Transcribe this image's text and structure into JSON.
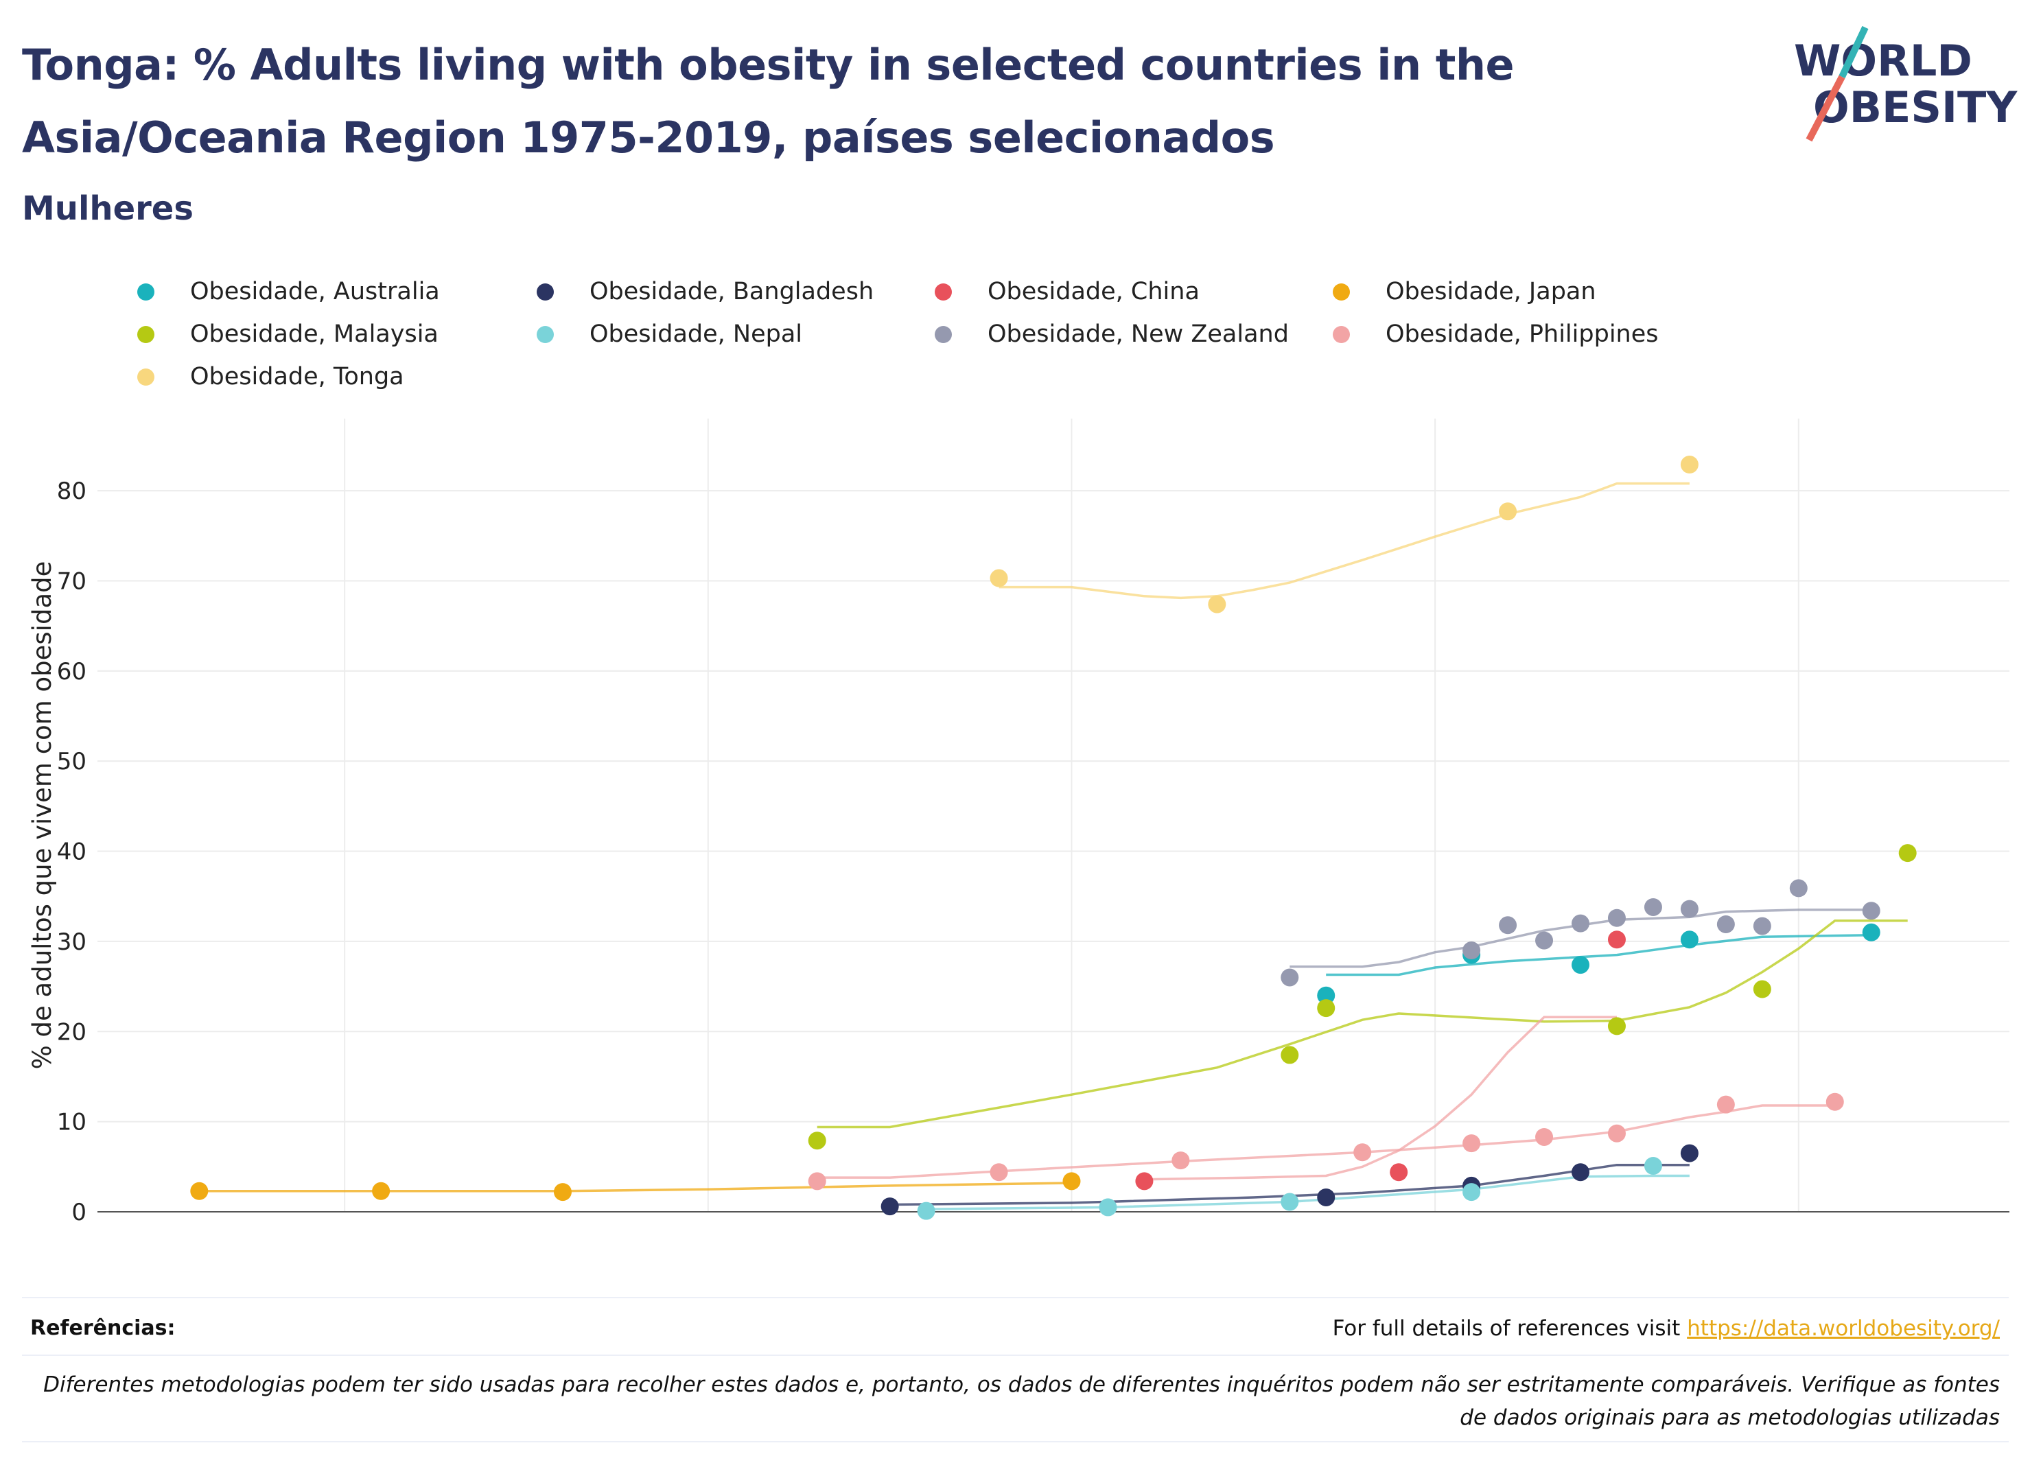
{
  "title": "Tonga: % Adults living with obesity in selected countries in the Asia/Oceania Region 1975-2019, países selecionados",
  "subtitle": "Mulheres",
  "logo": {
    "line1": "WORLD",
    "line2": "OBESITY"
  },
  "colors": {
    "Australia": "#1ab2bc",
    "Bangladesh": "#2b3462",
    "China": "#e8515b",
    "Japan": "#f0aa12",
    "Malaysia": "#b5c913",
    "Nepal": "#7ad3d9",
    "New Zealand": "#9599af",
    "Philippines": "#f2a4a5",
    "Tonga": "#f8d77e",
    "title": "#2b3462",
    "link": "#e6a817"
  },
  "footer": {
    "ref_label": "Referências:",
    "ref_text": "For full details of references visit ",
    "ref_link": "https://data.worldobesity.org/",
    "disclaimer": "Diferentes metodologias podem ter sido usadas para recolher estes dados e, portanto, os dados de diferentes inquéritos podem não ser estritamente comparáveis. Verifique as fontes de dados originais para as metodologias utilizadas"
  },
  "chart_data": {
    "type": "scatter",
    "ylabel": "% de adultos que vivem com obesidade",
    "xlabel": "",
    "xlim": [
      1973.2,
      2025.8
    ],
    "ylim": [
      0,
      88
    ],
    "xticks": [
      1980,
      1990,
      2000,
      2010,
      2020
    ],
    "yticks": [
      0,
      10,
      20,
      30,
      40,
      50,
      60,
      70,
      80
    ],
    "grid": true,
    "legend_position": "top",
    "series": [
      {
        "name": "Obesidade, Australia",
        "color": "#1ab2bc",
        "points": [
          [
            2007,
            24.0
          ],
          [
            2011,
            28.5
          ],
          [
            2014,
            27.4
          ],
          [
            2017,
            30.2
          ],
          [
            2022,
            31.0
          ]
        ],
        "trend": [
          [
            2007,
            26.3
          ],
          [
            2009,
            26.3
          ],
          [
            2010,
            27.1
          ],
          [
            2012,
            27.8
          ],
          [
            2015,
            28.5
          ],
          [
            2017,
            29.6
          ],
          [
            2019,
            30.5
          ],
          [
            2022,
            30.7
          ]
        ]
      },
      {
        "name": "Obesidade, Bangladesh",
        "color": "#2b3462",
        "points": [
          [
            1995,
            0.6
          ],
          [
            2007,
            1.6
          ],
          [
            2011,
            2.9
          ],
          [
            2014,
            4.4
          ],
          [
            2017,
            6.5
          ]
        ],
        "trend": [
          [
            1995,
            0.8
          ],
          [
            2000,
            1.0
          ],
          [
            2005,
            1.6
          ],
          [
            2008,
            2.1
          ],
          [
            2011,
            2.9
          ],
          [
            2013,
            4.0
          ],
          [
            2015,
            5.2
          ],
          [
            2017,
            5.2
          ]
        ]
      },
      {
        "name": "Obesidade, China",
        "color": "#e8515b",
        "points": [
          [
            2002,
            3.4
          ],
          [
            2009,
            4.4
          ],
          [
            2015,
            30.2
          ]
        ],
        "trend": []
      },
      {
        "name": "Obesidade, Japan",
        "color": "#f0aa12",
        "points": [
          [
            1976,
            2.3
          ],
          [
            1981,
            2.3
          ],
          [
            1986,
            2.2
          ],
          [
            2000,
            3.4
          ]
        ],
        "trend": [
          [
            1976,
            2.3
          ],
          [
            1981,
            2.3
          ],
          [
            1986,
            2.3
          ],
          [
            1990,
            2.5
          ],
          [
            1995,
            2.9
          ],
          [
            2000,
            3.2
          ]
        ]
      },
      {
        "name": "Obesidade, Malaysia",
        "color": "#b5c913",
        "points": [
          [
            1993,
            7.9
          ],
          [
            2006,
            17.4
          ],
          [
            2007,
            22.6
          ],
          [
            2015,
            20.6
          ],
          [
            2019,
            24.7
          ],
          [
            2023,
            39.8
          ]
        ],
        "trend": [
          [
            1993,
            9.4
          ],
          [
            1995,
            9.4
          ],
          [
            2000,
            13.0
          ],
          [
            2004,
            16.0
          ],
          [
            2006,
            18.6
          ],
          [
            2008,
            21.3
          ],
          [
            2009,
            22.0
          ],
          [
            2013,
            21.1
          ],
          [
            2015,
            21.2
          ],
          [
            2017,
            22.7
          ],
          [
            2018,
            24.3
          ],
          [
            2019,
            26.6
          ],
          [
            2020,
            29.2
          ],
          [
            2021,
            32.3
          ],
          [
            2023,
            32.3
          ]
        ]
      },
      {
        "name": "Obesidade, Nepal",
        "color": "#7ad3d9",
        "points": [
          [
            1996,
            0.1
          ],
          [
            2001,
            0.5
          ],
          [
            2006,
            1.1
          ],
          [
            2011,
            2.2
          ],
          [
            2016,
            5.1
          ]
        ],
        "trend": [
          [
            1996,
            0.3
          ],
          [
            2001,
            0.5
          ],
          [
            2006,
            1.1
          ],
          [
            2011,
            2.5
          ],
          [
            2014,
            3.9
          ],
          [
            2016,
            4.0
          ],
          [
            2017,
            4.0
          ]
        ]
      },
      {
        "name": "Obesidade, New Zealand",
        "color": "#9599af",
        "points": [
          [
            2006,
            26.0
          ],
          [
            2011,
            29.0
          ],
          [
            2012,
            31.8
          ],
          [
            2013,
            30.1
          ],
          [
            2014,
            32.0
          ],
          [
            2015,
            32.6
          ],
          [
            2016,
            33.8
          ],
          [
            2017,
            33.6
          ],
          [
            2018,
            31.9
          ],
          [
            2019,
            31.7
          ],
          [
            2020,
            35.9
          ],
          [
            2022,
            33.4
          ]
        ],
        "trend": [
          [
            2006,
            27.2
          ],
          [
            2008,
            27.2
          ],
          [
            2009,
            27.7
          ],
          [
            2010,
            28.8
          ],
          [
            2011,
            29.4
          ],
          [
            2013,
            31.2
          ],
          [
            2015,
            32.4
          ],
          [
            2017,
            32.7
          ],
          [
            2018,
            33.3
          ],
          [
            2020,
            33.5
          ],
          [
            2022,
            33.5
          ]
        ]
      },
      {
        "name": "Obesidade, Philippines",
        "color": "#f2a4a5",
        "points": [
          [
            1993,
            3.4
          ],
          [
            1998,
            4.4
          ],
          [
            2003,
            5.7
          ],
          [
            2008,
            6.6
          ],
          [
            2011,
            7.6
          ],
          [
            2013,
            8.3
          ],
          [
            2015,
            8.7
          ],
          [
            2018,
            11.9
          ],
          [
            2021,
            12.2
          ]
        ],
        "trend": [
          [
            1993,
            3.8
          ],
          [
            1995,
            3.8
          ],
          [
            1998,
            4.5
          ],
          [
            2003,
            5.6
          ],
          [
            2008,
            6.6
          ],
          [
            2011,
            7.4
          ],
          [
            2013,
            8.0
          ],
          [
            2015,
            8.9
          ],
          [
            2017,
            10.5
          ],
          [
            2018,
            11.1
          ],
          [
            2019,
            11.8
          ],
          [
            2021,
            11.8
          ]
        ]
      },
      {
        "name": "Obesidade, Tonga",
        "color": "#f8d77e",
        "points": [
          [
            1998,
            70.3
          ],
          [
            2004,
            67.4
          ],
          [
            2012,
            77.7
          ],
          [
            2017,
            82.9
          ]
        ],
        "trend": [
          [
            1998,
            69.3
          ],
          [
            2000,
            69.3
          ],
          [
            2002,
            68.3
          ],
          [
            2003,
            68.1
          ],
          [
            2004,
            68.3
          ],
          [
            2005,
            69.0
          ],
          [
            2006,
            69.8
          ],
          [
            2008,
            72.3
          ],
          [
            2010,
            74.9
          ],
          [
            2012,
            77.4
          ],
          [
            2014,
            79.3
          ],
          [
            2015,
            80.8
          ],
          [
            2017,
            80.8
          ]
        ]
      },
      {
        "name": "China trend",
        "color": "#f2a4a5",
        "points": [],
        "trend": [
          [
            2002,
            3.6
          ],
          [
            2005,
            3.8
          ],
          [
            2007,
            4.0
          ],
          [
            2008,
            5.0
          ],
          [
            2009,
            6.8
          ],
          [
            2010,
            9.5
          ],
          [
            2011,
            13.0
          ],
          [
            2012,
            17.7
          ],
          [
            2013,
            21.6
          ],
          [
            2015,
            21.6
          ]
        ]
      }
    ]
  },
  "legend": [
    {
      "label": "Obesidade, Australia",
      "color": "#1ab2bc"
    },
    {
      "label": "Obesidade, Bangladesh",
      "color": "#2b3462"
    },
    {
      "label": "Obesidade, China",
      "color": "#e8515b"
    },
    {
      "label": "Obesidade, Japan",
      "color": "#f0aa12"
    },
    {
      "label": "Obesidade, Malaysia",
      "color": "#b5c913"
    },
    {
      "label": "Obesidade, Nepal",
      "color": "#7ad3d9"
    },
    {
      "label": "Obesidade, New Zealand",
      "color": "#9599af"
    },
    {
      "label": "Obesidade, Philippines",
      "color": "#f2a4a5"
    },
    {
      "label": "Obesidade, Tonga",
      "color": "#f8d77e"
    }
  ]
}
